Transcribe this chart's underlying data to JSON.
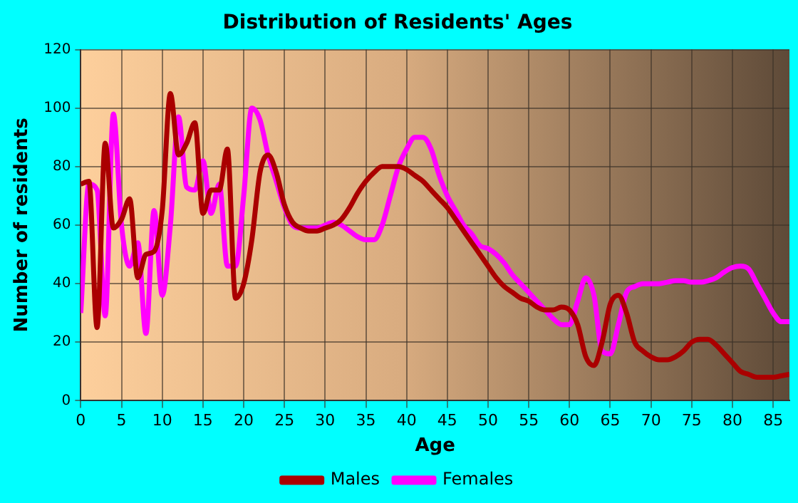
{
  "chart_data": {
    "type": "line",
    "title": "Distribution of Residents' Ages",
    "xlabel": "Age",
    "ylabel": "Number of residents",
    "x": [
      0,
      1,
      2,
      3,
      4,
      5,
      6,
      7,
      8,
      9,
      10,
      11,
      12,
      13,
      14,
      15,
      16,
      17,
      18,
      19,
      20,
      21,
      22,
      23,
      24,
      25,
      26,
      27,
      28,
      29,
      30,
      31,
      32,
      33,
      34,
      35,
      36,
      37,
      38,
      39,
      40,
      41,
      42,
      43,
      44,
      45,
      46,
      47,
      48,
      49,
      50,
      51,
      52,
      53,
      54,
      55,
      56,
      57,
      58,
      59,
      60,
      61,
      62,
      63,
      64,
      65,
      66,
      67,
      68,
      69,
      70,
      71,
      72,
      73,
      74,
      75,
      76,
      77,
      78,
      79,
      80,
      81,
      82,
      83,
      84,
      85,
      86,
      87
    ],
    "series": [
      {
        "name": "Males",
        "color": "#aa0000",
        "values": [
          74,
          75,
          25,
          88,
          59,
          62,
          69,
          42,
          50,
          51,
          65,
          105,
          84,
          88,
          95,
          64,
          72,
          72,
          86,
          35,
          40,
          55,
          78,
          84,
          78,
          67,
          61,
          59,
          58,
          58,
          59,
          60,
          62,
          66,
          71,
          75,
          78,
          80,
          80,
          80,
          79,
          77,
          75,
          72,
          69,
          66,
          62,
          58,
          54,
          50,
          46,
          42,
          39,
          37,
          35,
          34,
          32,
          31,
          31,
          32,
          31,
          26,
          15,
          12,
          20,
          33,
          36,
          30,
          20,
          17,
          15,
          14,
          14,
          15,
          17,
          20,
          21,
          21,
          19,
          16,
          13,
          10,
          9,
          8,
          8,
          8,
          8.5,
          9
        ]
      },
      {
        "name": "Females",
        "color": "#ff00ff",
        "values": [
          30,
          74,
          72,
          29,
          98,
          60,
          46,
          54,
          23,
          65,
          36,
          60,
          97,
          73,
          72,
          82,
          64,
          74,
          46,
          46,
          70,
          100,
          96,
          84,
          75,
          66,
          60,
          59,
          59,
          59,
          60,
          61,
          60,
          58,
          56,
          55,
          55,
          60,
          70,
          80,
          86,
          90,
          90,
          86,
          77,
          70,
          65,
          60,
          57,
          53,
          52,
          50,
          47,
          43,
          40,
          37,
          34,
          31,
          28,
          26,
          26,
          34,
          42,
          36,
          17,
          16,
          26,
          37,
          39,
          40,
          40,
          40,
          40.5,
          41,
          41,
          40.5,
          40.5,
          41,
          42,
          44,
          45.5,
          46,
          45,
          40,
          35,
          30,
          27,
          27
        ]
      }
    ],
    "xlim": [
      0,
      87
    ],
    "xticks": [
      0,
      5,
      10,
      15,
      20,
      25,
      30,
      35,
      40,
      45,
      50,
      55,
      60,
      65,
      70,
      75,
      80,
      85
    ],
    "ylim": [
      0,
      120
    ],
    "yticks": [
      0,
      20,
      40,
      60,
      80,
      100,
      120
    ],
    "grid": true,
    "legend": "bottom",
    "marker": "none",
    "line_style": "solid"
  }
}
